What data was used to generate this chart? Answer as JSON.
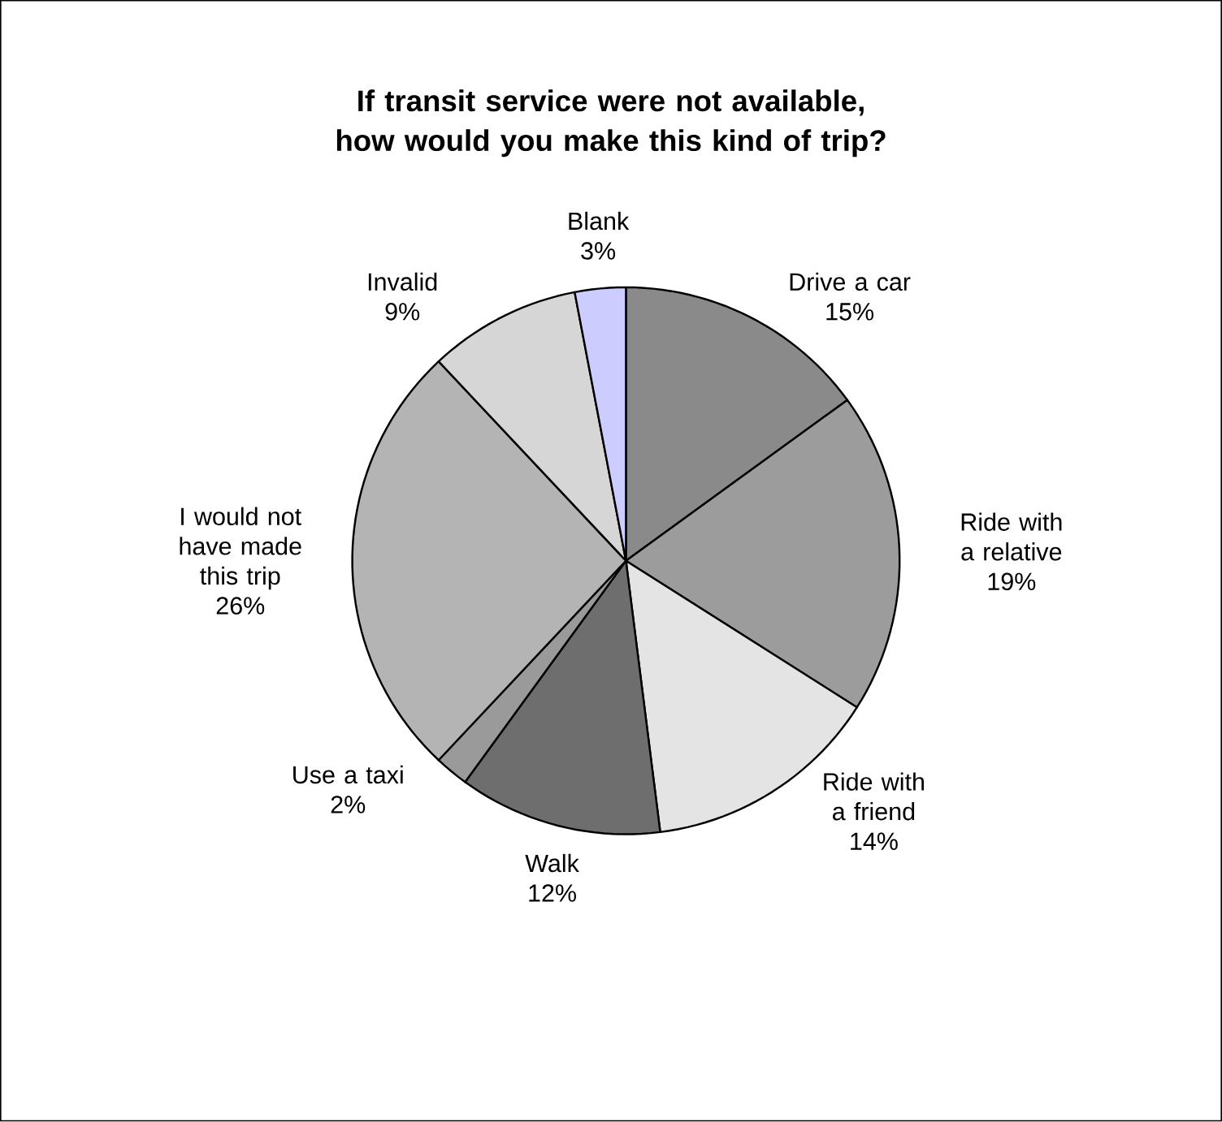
{
  "chart_data": {
    "type": "pie",
    "title": "If transit service were not available, how would you make this kind of trip?",
    "categories": [
      "Drive a car",
      "Ride with a relative",
      "Ride with a friend",
      "Walk",
      "Use a taxi",
      "I would not have made this trip",
      "Invalid",
      "Blank"
    ],
    "values": [
      15,
      19,
      14,
      12,
      2,
      26,
      9,
      3
    ],
    "value_labels": [
      "15%",
      "19%",
      "14%",
      "12%",
      "2%",
      "26%",
      "9%",
      "3%"
    ],
    "colors": [
      "#8a8a8a",
      "#9c9c9c",
      "#e4e4e4",
      "#6e6e6e",
      "#9a9a9a",
      "#b4b4b4",
      "#d6d6d6",
      "#ccccff"
    ]
  }
}
